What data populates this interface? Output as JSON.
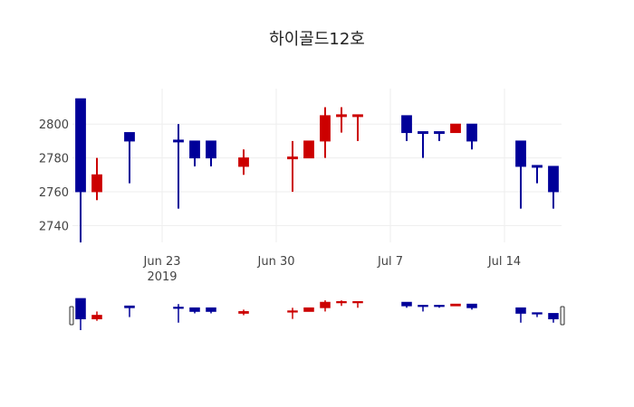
{
  "chart_data": {
    "type": "candlestick",
    "title": "하이골드12호",
    "xlabel": "",
    "ylabel": "",
    "ylim": [
      2730,
      2821
    ],
    "yticks": [
      2740,
      2760,
      2780,
      2800
    ],
    "xticks": [
      {
        "date": "2019-06-23",
        "label": "Jun 23",
        "sublabel": "2019"
      },
      {
        "date": "2019-06-30",
        "label": "Jun 30",
        "sublabel": ""
      },
      {
        "date": "2019-07-07",
        "label": "Jul 7",
        "sublabel": ""
      },
      {
        "date": "2019-07-14",
        "label": "Jul 14",
        "sublabel": ""
      }
    ],
    "xrange": [
      "2019-06-17T12:00",
      "2019-07-17T12:00"
    ],
    "grid": true,
    "increasing_color": "#cc0000",
    "decreasing_color": "#000099",
    "rangeslider": true,
    "candles": [
      {
        "date": "2019-06-18",
        "open": 2815,
        "high": 2815,
        "low": 2730,
        "close": 2760
      },
      {
        "date": "2019-06-19",
        "open": 2760,
        "high": 2780,
        "low": 2755,
        "close": 2770
      },
      {
        "date": "2019-06-21",
        "open": 2795,
        "high": 2795,
        "low": 2765,
        "close": 2790
      },
      {
        "date": "2019-06-24",
        "open": 2790,
        "high": 2800,
        "low": 2750,
        "close": 2790
      },
      {
        "date": "2019-06-25",
        "open": 2790,
        "high": 2790,
        "low": 2775,
        "close": 2780
      },
      {
        "date": "2019-06-26",
        "open": 2790,
        "high": 2790,
        "low": 2775,
        "close": 2780
      },
      {
        "date": "2019-06-28",
        "open": 2775,
        "high": 2785,
        "low": 2770,
        "close": 2780
      },
      {
        "date": "2019-07-01",
        "open": 2780,
        "high": 2790,
        "low": 2760,
        "close": 2780,
        "up": true
      },
      {
        "date": "2019-07-02",
        "open": 2780,
        "high": 2790,
        "low": 2780,
        "close": 2790
      },
      {
        "date": "2019-07-03",
        "open": 2790,
        "high": 2810,
        "low": 2780,
        "close": 2805
      },
      {
        "date": "2019-07-04",
        "open": 2805,
        "high": 2810,
        "low": 2795,
        "close": 2805,
        "up": true
      },
      {
        "date": "2019-07-05",
        "open": 2805,
        "high": 2805,
        "low": 2790,
        "close": 2805,
        "up": true
      },
      {
        "date": "2019-07-08",
        "open": 2805,
        "high": 2805,
        "low": 2790,
        "close": 2795
      },
      {
        "date": "2019-07-09",
        "open": 2795,
        "high": 2795,
        "low": 2780,
        "close": 2795
      },
      {
        "date": "2019-07-10",
        "open": 2795,
        "high": 2795,
        "low": 2790,
        "close": 2795
      },
      {
        "date": "2019-07-11",
        "open": 2795,
        "high": 2800,
        "low": 2795,
        "close": 2800
      },
      {
        "date": "2019-07-12",
        "open": 2800,
        "high": 2800,
        "low": 2785,
        "close": 2790
      },
      {
        "date": "2019-07-15",
        "open": 2790,
        "high": 2790,
        "low": 2750,
        "close": 2775
      },
      {
        "date": "2019-07-16",
        "open": 2775,
        "high": 2775,
        "low": 2765,
        "close": 2775
      },
      {
        "date": "2019-07-17",
        "open": 2775,
        "high": 2775,
        "low": 2750,
        "close": 2760
      }
    ]
  }
}
